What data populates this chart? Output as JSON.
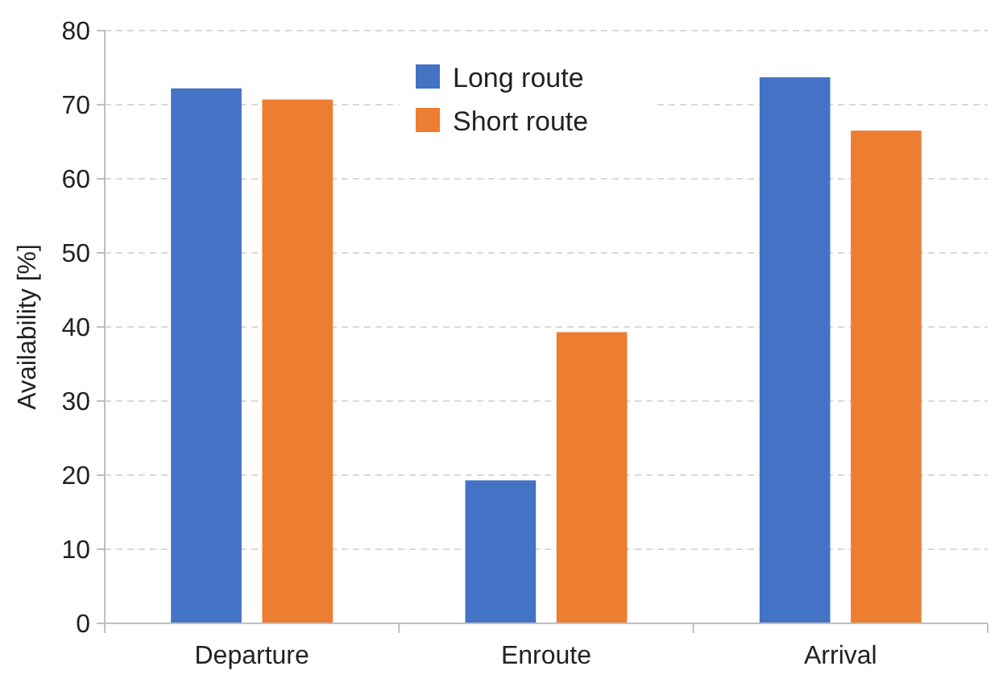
{
  "chart_data": {
    "type": "bar",
    "ylabel": "Availability [%]",
    "categories": [
      "Departure",
      "Enroute",
      "Arrival"
    ],
    "series": [
      {
        "name": "Long route",
        "color": "#4472c4",
        "values": [
          72.2,
          19.3,
          73.7
        ]
      },
      {
        "name": "Short route",
        "color": "#ed7d31",
        "values": [
          70.7,
          39.3,
          66.5
        ]
      }
    ],
    "ylim": [
      0,
      80
    ],
    "yticks": [
      0,
      10,
      20,
      30,
      40,
      50,
      60,
      70,
      80
    ],
    "grid": "y",
    "legend": "top"
  }
}
